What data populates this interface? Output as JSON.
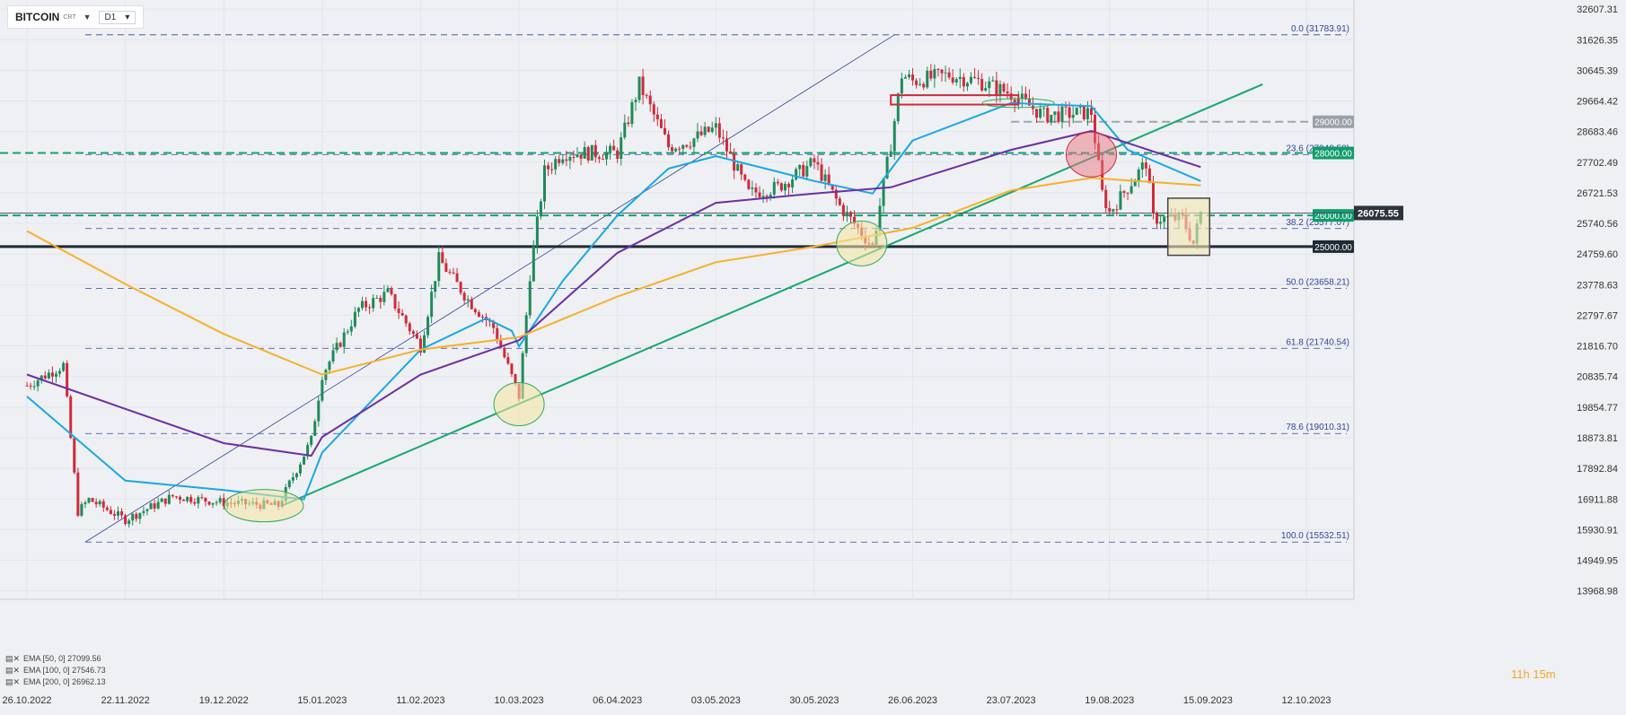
{
  "header": {
    "symbol": "BITCOIN",
    "symbol_sub": "CRT",
    "timeframe": "D1"
  },
  "chart_data": {
    "type": "candlestick",
    "title": "BITCOIN",
    "x_labels": [
      "26.10.2022",
      "22.11.2022",
      "19.12.2022",
      "15.01.2023",
      "11.02.2023",
      "10.03.2023",
      "06.04.2023",
      "03.05.2023",
      "30.05.2023",
      "26.06.2023",
      "23.07.2023",
      "19.08.2023",
      "15.09.2023",
      "12.10.2023"
    ],
    "y_ticks": [
      32607.31,
      31626.35,
      30645.39,
      29664.42,
      28683.46,
      27702.49,
      26721.53,
      25740.56,
      24759.6,
      23778.63,
      22797.67,
      21816.7,
      20835.74,
      19854.77,
      18873.81,
      17892.84,
      16911.88,
      15930.91,
      14949.95,
      13968.98
    ],
    "ylim": [
      13700,
      32900
    ],
    "current_price": "26075.55",
    "price_series": [
      {
        "date": "26.10.2022",
        "close": 20550
      },
      {
        "date": "05.11.2022",
        "close": 21200
      },
      {
        "date": "09.11.2022",
        "close": 16500
      },
      {
        "date": "12.11.2022",
        "close": 16900
      },
      {
        "date": "22.11.2022",
        "close": 16250
      },
      {
        "date": "05.12.2022",
        "close": 17000
      },
      {
        "date": "19.12.2022",
        "close": 16800
      },
      {
        "date": "03.01.2023",
        "close": 16700
      },
      {
        "date": "12.01.2023",
        "close": 18800
      },
      {
        "date": "15.01.2023",
        "close": 20900
      },
      {
        "date": "25.01.2023",
        "close": 23000
      },
      {
        "date": "02.02.2023",
        "close": 23500
      },
      {
        "date": "11.02.2023",
        "close": 21800
      },
      {
        "date": "16.02.2023",
        "close": 24600
      },
      {
        "date": "24.02.2023",
        "close": 23300
      },
      {
        "date": "03.03.2023",
        "close": 22400
      },
      {
        "date": "10.03.2023",
        "close": 20200
      },
      {
        "date": "13.03.2023",
        "close": 24100
      },
      {
        "date": "17.03.2023",
        "close": 27400
      },
      {
        "date": "22.03.2023",
        "close": 28000
      },
      {
        "date": "06.04.2023",
        "close": 28000
      },
      {
        "date": "12.04.2023",
        "close": 30200
      },
      {
        "date": "20.04.2023",
        "close": 28200
      },
      {
        "date": "26.04.2023",
        "close": 28400
      },
      {
        "date": "03.05.2023",
        "close": 28800
      },
      {
        "date": "12.05.2023",
        "close": 26700
      },
      {
        "date": "20.05.2023",
        "close": 26900
      },
      {
        "date": "30.05.2023",
        "close": 27700
      },
      {
        "date": "06.06.2023",
        "close": 26300
      },
      {
        "date": "15.06.2023",
        "close": 25000
      },
      {
        "date": "20.06.2023",
        "close": 28300
      },
      {
        "date": "23.06.2023",
        "close": 30500
      },
      {
        "date": "26.06.2023",
        "close": 30300
      },
      {
        "date": "06.07.2023",
        "close": 30500
      },
      {
        "date": "14.07.2023",
        "close": 30300
      },
      {
        "date": "23.07.2023",
        "close": 29900
      },
      {
        "date": "01.08.2023",
        "close": 29200
      },
      {
        "date": "14.08.2023",
        "close": 29300
      },
      {
        "date": "17.08.2023",
        "close": 26700
      },
      {
        "date": "19.08.2023",
        "close": 26100
      },
      {
        "date": "29.08.2023",
        "close": 27700
      },
      {
        "date": "31.08.2023",
        "close": 25900
      },
      {
        "date": "08.09.2023",
        "close": 25900
      },
      {
        "date": "11.09.2023",
        "close": 25100
      },
      {
        "date": "13.09.2023",
        "close": 26075.55
      }
    ],
    "ema_series": [
      {
        "name": "EMA [50, 0] 27099.56",
        "color": "#1aa7e6",
        "points": [
          {
            "date": "26.10.2022",
            "value": 20200
          },
          {
            "date": "22.11.2022",
            "value": 17500
          },
          {
            "date": "19.12.2022",
            "value": 17200
          },
          {
            "date": "10.01.2023",
            "value": 16900
          },
          {
            "date": "15.01.2023",
            "value": 18400
          },
          {
            "date": "11.02.2023",
            "value": 21700
          },
          {
            "date": "01.03.2023",
            "value": 22700
          },
          {
            "date": "08.03.2023",
            "value": 22300
          },
          {
            "date": "10.03.2023",
            "value": 21800
          },
          {
            "date": "22.03.2023",
            "value": 23900
          },
          {
            "date": "06.04.2023",
            "value": 26000
          },
          {
            "date": "20.04.2023",
            "value": 27500
          },
          {
            "date": "03.05.2023",
            "value": 27900
          },
          {
            "date": "20.05.2023",
            "value": 27400
          },
          {
            "date": "30.05.2023",
            "value": 27100
          },
          {
            "date": "15.06.2023",
            "value": 26700
          },
          {
            "date": "26.06.2023",
            "value": 28400
          },
          {
            "date": "23.07.2023",
            "value": 29600
          },
          {
            "date": "14.08.2023",
            "value": 29500
          },
          {
            "date": "24.08.2023",
            "value": 28100
          },
          {
            "date": "13.09.2023",
            "value": 27099.56
          }
        ]
      },
      {
        "name": "EMA [100, 0] 27546.73",
        "color": "#6b2fa8",
        "points": [
          {
            "date": "26.10.2022",
            "value": 20900
          },
          {
            "date": "22.11.2022",
            "value": 19800
          },
          {
            "date": "19.12.2022",
            "value": 18700
          },
          {
            "date": "12.01.2023",
            "value": 18300
          },
          {
            "date": "15.01.2023",
            "value": 18900
          },
          {
            "date": "11.02.2023",
            "value": 20900
          },
          {
            "date": "10.03.2023",
            "value": 22000
          },
          {
            "date": "06.04.2023",
            "value": 24800
          },
          {
            "date": "03.05.2023",
            "value": 26400
          },
          {
            "date": "30.05.2023",
            "value": 26700
          },
          {
            "date": "20.06.2023",
            "value": 26900
          },
          {
            "date": "23.07.2023",
            "value": 28100
          },
          {
            "date": "14.08.2023",
            "value": 28700
          },
          {
            "date": "13.09.2023",
            "value": 27546.73
          }
        ]
      },
      {
        "name": "EMA [200, 0] 26962.13",
        "color": "#f5b12a",
        "points": [
          {
            "date": "26.10.2022",
            "value": 25500
          },
          {
            "date": "22.11.2022",
            "value": 23800
          },
          {
            "date": "19.12.2022",
            "value": 22200
          },
          {
            "date": "15.01.2023",
            "value": 20900
          },
          {
            "date": "11.02.2023",
            "value": 21700
          },
          {
            "date": "10.03.2023",
            "value": 22100
          },
          {
            "date": "06.04.2023",
            "value": 23400
          },
          {
            "date": "03.05.2023",
            "value": 24500
          },
          {
            "date": "30.05.2023",
            "value": 25000
          },
          {
            "date": "26.06.2023",
            "value": 25600
          },
          {
            "date": "23.07.2023",
            "value": 26800
          },
          {
            "date": "14.08.2023",
            "value": 27200
          },
          {
            "date": "13.09.2023",
            "value": 26962.13
          }
        ]
      }
    ],
    "fibonacci_levels": [
      {
        "label": "0.0 (31783.91)",
        "value": 31783.91
      },
      {
        "label": "23.6 (27948.58)",
        "value": 27948.58
      },
      {
        "label": "38.2 (25577.07)",
        "value": 25577.07
      },
      {
        "label": "50.0 (23658.21)",
        "value": 23658.21
      },
      {
        "label": "61.8 (21740.54)",
        "value": 21740.54
      },
      {
        "label": "78.6 (19010.31)",
        "value": 19010.31
      },
      {
        "label": "100.0 (15532.51)",
        "value": 15532.51
      }
    ],
    "horizontal_levels": [
      {
        "label": "29000.00",
        "value": 29000,
        "color": "#a0a4aa",
        "style": "dashed"
      },
      {
        "label": "28000.00",
        "value": 28000,
        "color": "#11a36f",
        "style": "dashed"
      },
      {
        "label": "26000.00",
        "value": 26000,
        "color": "#11a36f",
        "style": "dashed"
      },
      {
        "label": "25000.00",
        "value": 25000,
        "color": "#1f2a35",
        "style": "solid"
      }
    ],
    "legend_placement": "bottom-left",
    "grid": true
  },
  "footer": {
    "timer": "11h 15m"
  },
  "colors": {
    "up": "#1f8a5a",
    "down": "#d12a3a",
    "fib": "#3344a0",
    "trend": "#17a86d",
    "bg": "#eef0f3"
  }
}
